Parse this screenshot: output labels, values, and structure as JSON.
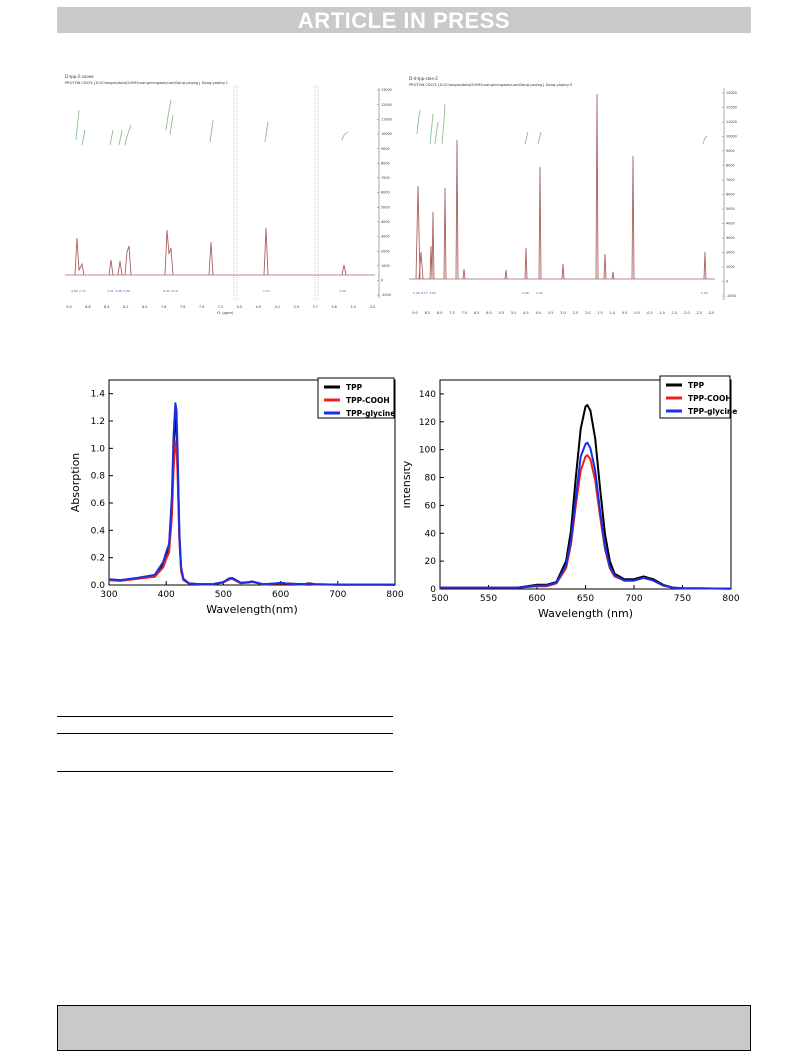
{
  "banner": {
    "text": "ARTICLE IN PRESS"
  },
  "nmr_left": {
    "header_line1": "D-tpp-2-cooee",
    "header_line2": "PROTON CDCl3 {D:\\Changes\\data\\2009\\huangmengweiyuan\\Dong-yaqing} Dong-yaqing 1",
    "x_ticks": [
      "9.0",
      "8.6",
      "8.4",
      "8.2",
      "8.0",
      "7.8",
      "7.6",
      "7.4",
      "7.2",
      "5.0",
      "4.5",
      "4.1",
      "3.9",
      "3.7",
      "3.6",
      "3.5",
      "-3.0"
    ],
    "x_axis_label": "f1 (ppm)",
    "y_ticks": [
      "13000",
      "12000",
      "11000",
      "10000",
      "9000",
      "8000",
      "7000",
      "6000",
      "5000",
      "4000",
      "3000",
      "2000",
      "1000",
      "0",
      "-1000"
    ]
  },
  "nmr_right": {
    "header_line1": "D-d-tpp-cole-2",
    "header_line2": "PROTON CDCl3 {D:\\Changes\\data\\2009\\huangmengweiyuan\\Dong-yaqing} Dong-yaqing 9",
    "x_ticks": [
      "9.0",
      "8.5",
      "8.0",
      "7.5",
      "7.0",
      "6.5",
      "6.0",
      "5.5",
      "5.0",
      "4.5",
      "4.0",
      "3.5",
      "3.0",
      "2.5",
      "2.0",
      "1.5",
      "1.0",
      "0.5",
      "0.0",
      "-0.5",
      "-1.0",
      "-1.5",
      "-2.0",
      "-2.5",
      "-3.0"
    ],
    "y_ticks": [
      "13000",
      "12000",
      "11000",
      "10000",
      "9000",
      "8000",
      "7000",
      "6000",
      "5000",
      "4000",
      "3000",
      "2000",
      "1000",
      "0",
      "-1000"
    ]
  },
  "chart_data": [
    {
      "type": "line",
      "xlabel": "Wavelength(nm)",
      "ylabel": "Absorption",
      "xlim": [
        300,
        800
      ],
      "ylim": [
        0,
        1.5
      ],
      "x_ticks": [
        300,
        400,
        500,
        600,
        700,
        800
      ],
      "y_ticks": [
        0.0,
        0.2,
        0.4,
        0.6,
        0.8,
        1.0,
        1.2,
        1.4
      ],
      "legend_position": "top-right",
      "series": [
        {
          "name": "TPP",
          "color": "#000000",
          "x": [
            300,
            320,
            350,
            380,
            395,
            400,
            405,
            410,
            413,
            416,
            418,
            420,
            423,
            426,
            430,
            440,
            460,
            480,
            500,
            510,
            515,
            520,
            530,
            545,
            550,
            555,
            570,
            590,
            600,
            610,
            640,
            650,
            660,
            700,
            800
          ],
          "y": [
            0.04,
            0.035,
            0.05,
            0.07,
            0.15,
            0.22,
            0.28,
            0.6,
            1.0,
            1.22,
            1.16,
            0.9,
            0.35,
            0.12,
            0.04,
            0.01,
            0.005,
            0.005,
            0.02,
            0.045,
            0.05,
            0.04,
            0.015,
            0.02,
            0.025,
            0.02,
            0.005,
            0.01,
            0.015,
            0.01,
            0.005,
            0.012,
            0.005,
            0.003,
            0.002
          ]
        },
        {
          "name": "TPP-COOH",
          "color": "#e8231a",
          "x": [
            300,
            320,
            350,
            380,
            395,
            400,
            405,
            410,
            413,
            416,
            418,
            420,
            423,
            426,
            430,
            440,
            460,
            480,
            500,
            510,
            515,
            520,
            530,
            545,
            550,
            555,
            570,
            590,
            600,
            610,
            640,
            650,
            660,
            700,
            800
          ],
          "y": [
            0.035,
            0.03,
            0.045,
            0.06,
            0.13,
            0.19,
            0.24,
            0.5,
            0.85,
            1.05,
            1.02,
            0.8,
            0.32,
            0.1,
            0.035,
            0.01,
            0.005,
            0.004,
            0.018,
            0.04,
            0.045,
            0.035,
            0.013,
            0.018,
            0.022,
            0.018,
            0.004,
            0.009,
            0.013,
            0.009,
            0.004,
            0.01,
            0.004,
            0.003,
            0.002
          ]
        },
        {
          "name": "TPP-glycine",
          "color": "#1a2ee8",
          "x": [
            300,
            320,
            350,
            380,
            395,
            400,
            405,
            410,
            413,
            416,
            418,
            420,
            423,
            426,
            430,
            440,
            460,
            480,
            500,
            510,
            515,
            520,
            530,
            545,
            550,
            555,
            570,
            590,
            600,
            610,
            640,
            650,
            660,
            700,
            800
          ],
          "y": [
            0.042,
            0.036,
            0.052,
            0.075,
            0.17,
            0.24,
            0.3,
            0.65,
            1.1,
            1.33,
            1.28,
            0.98,
            0.38,
            0.13,
            0.045,
            0.012,
            0.005,
            0.005,
            0.022,
            0.048,
            0.052,
            0.042,
            0.016,
            0.021,
            0.026,
            0.021,
            0.005,
            0.011,
            0.016,
            0.011,
            0.005,
            0.013,
            0.005,
            0.003,
            0.002
          ]
        }
      ]
    },
    {
      "type": "line",
      "xlabel": "Wavelength (nm)",
      "ylabel": "Intensity",
      "xlim": [
        500,
        800
      ],
      "ylim": [
        0,
        150
      ],
      "x_ticks": [
        500,
        550,
        600,
        650,
        700,
        750,
        800
      ],
      "y_ticks": [
        0,
        20,
        40,
        60,
        80,
        100,
        120,
        140
      ],
      "legend_position": "top-right",
      "series": [
        {
          "name": "TPP",
          "color": "#000000",
          "x": [
            500,
            550,
            580,
            590,
            600,
            610,
            620,
            630,
            635,
            640,
            645,
            650,
            652,
            655,
            660,
            665,
            670,
            675,
            680,
            690,
            700,
            705,
            710,
            715,
            720,
            730,
            740,
            750,
            800
          ],
          "y": [
            1,
            1,
            1,
            2,
            3,
            3,
            5,
            20,
            42,
            80,
            115,
            131,
            132,
            128,
            108,
            72,
            40,
            20,
            11,
            7,
            7,
            8,
            9,
            8,
            7,
            3,
            1,
            0.5,
            0.3
          ]
        },
        {
          "name": "TPP-COOH",
          "color": "#e8231a",
          "x": [
            500,
            550,
            580,
            590,
            600,
            610,
            620,
            630,
            635,
            640,
            645,
            650,
            652,
            655,
            660,
            665,
            670,
            675,
            680,
            690,
            700,
            705,
            710,
            715,
            720,
            730,
            740,
            750,
            800
          ],
          "y": [
            1,
            1,
            1,
            1.5,
            2,
            2,
            4,
            15,
            32,
            60,
            85,
            95,
            96,
            93,
            78,
            52,
            29,
            15,
            9,
            6,
            6,
            7,
            8,
            7,
            6,
            2.5,
            1,
            0.5,
            0.3
          ]
        },
        {
          "name": "TPP-glycine",
          "color": "#1a2ee8",
          "x": [
            500,
            550,
            580,
            590,
            600,
            610,
            620,
            630,
            635,
            640,
            645,
            650,
            652,
            655,
            660,
            665,
            670,
            675,
            680,
            690,
            700,
            705,
            710,
            715,
            720,
            730,
            740,
            750,
            800
          ],
          "y": [
            1,
            1,
            1,
            1.5,
            2.5,
            2.5,
            4.5,
            17,
            35,
            65,
            95,
            104,
            105,
            101,
            85,
            56,
            31,
            16,
            10,
            6,
            6,
            7,
            8,
            7,
            6,
            2.5,
            1,
            0.5,
            0.3
          ]
        }
      ]
    }
  ]
}
